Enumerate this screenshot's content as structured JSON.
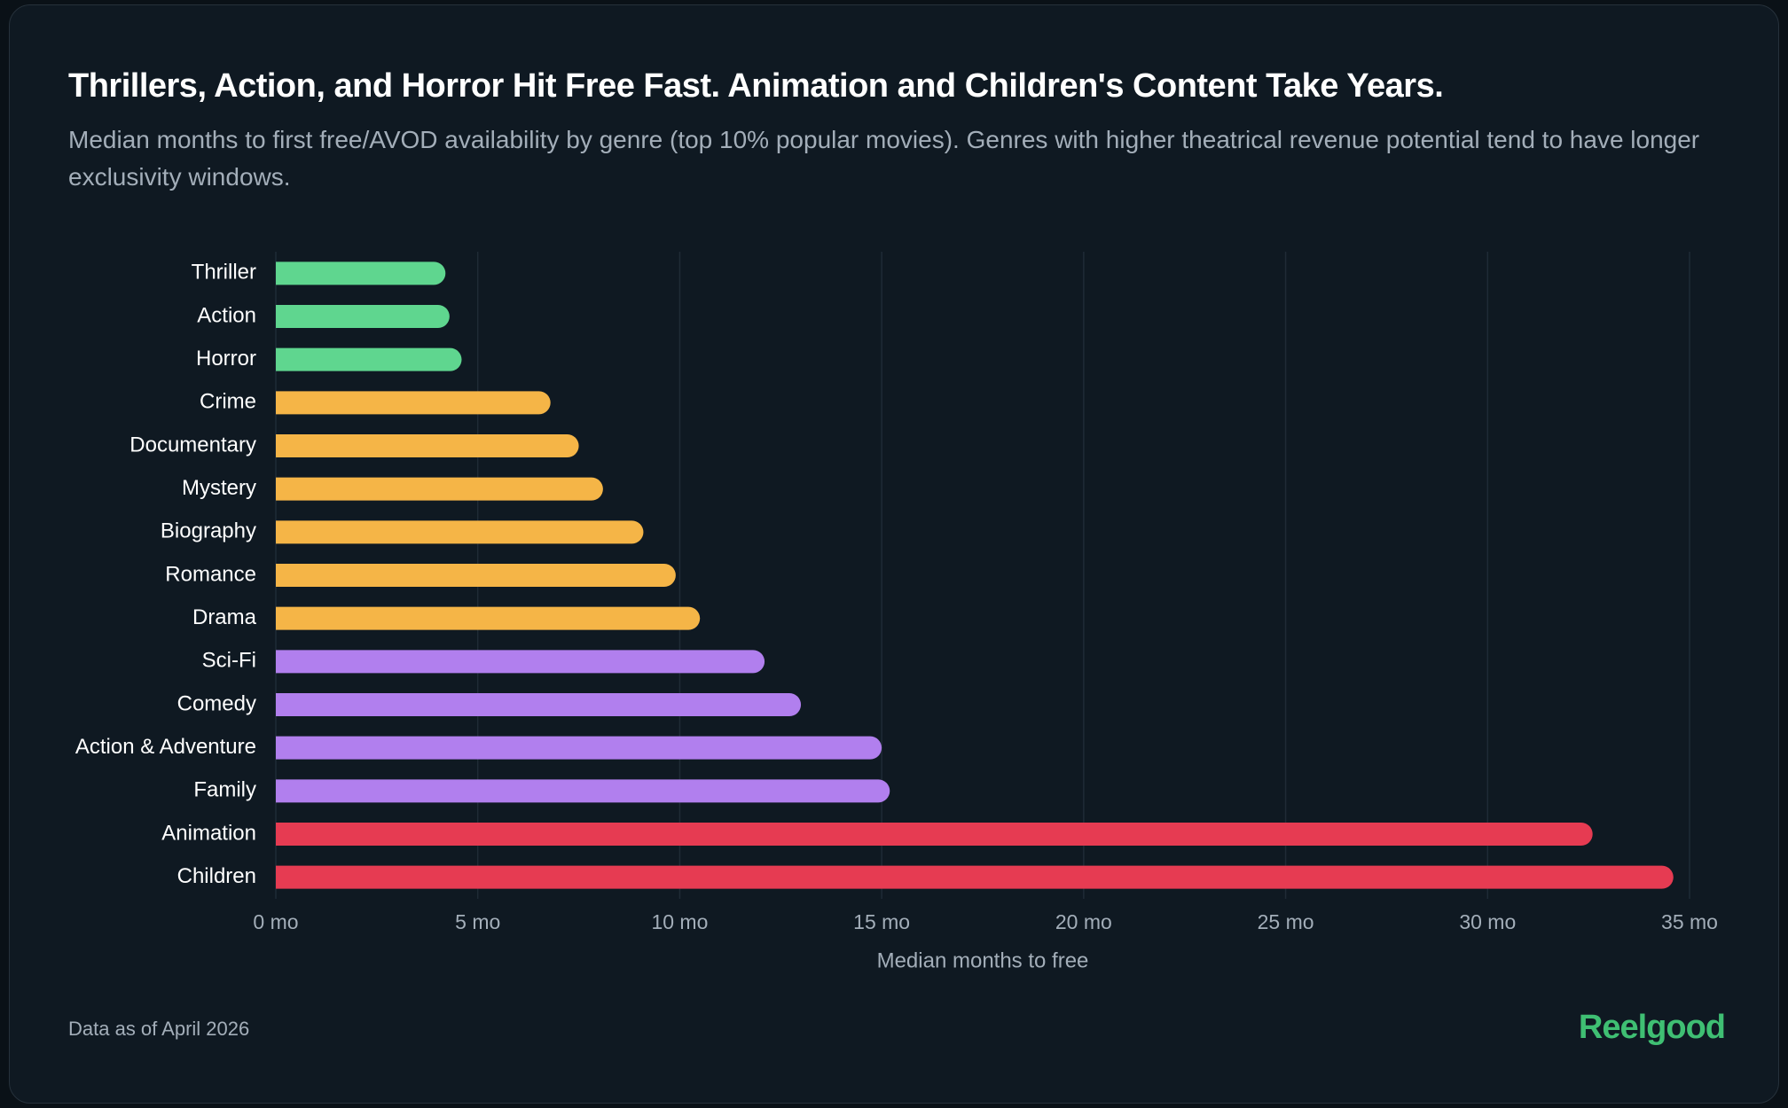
{
  "chart_data": {
    "type": "hbar",
    "title": "Thrillers, Action, and Horror Hit Free Fast. Animation and Children's Content Take Years.",
    "subtitle": "Median months to first free/AVOD availability by genre (top 10% popular movies). Genres with higher theatrical revenue potential tend to have longer exclusivity windows.",
    "categories": [
      "Thriller",
      "Action",
      "Horror",
      "Crime",
      "Documentary",
      "Mystery",
      "Biography",
      "Romance",
      "Drama",
      "Sci-Fi",
      "Comedy",
      "Action & Adventure",
      "Family",
      "Animation",
      "Children"
    ],
    "values": [
      4.2,
      4.3,
      4.6,
      6.8,
      7.5,
      8.1,
      9.1,
      9.9,
      10.5,
      12.1,
      13.0,
      15.0,
      15.2,
      32.6,
      34.6
    ],
    "colors": [
      "#5fd68f",
      "#5fd68f",
      "#5fd68f",
      "#f5b547",
      "#f5b547",
      "#f5b547",
      "#f5b547",
      "#f5b547",
      "#f5b547",
      "#b17fee",
      "#b17fee",
      "#b17fee",
      "#b17fee",
      "#e63b52",
      "#e63b52"
    ],
    "x_label": "Median months to free",
    "xlim": [
      0,
      35
    ],
    "xticks": [
      {
        "value": 0,
        "label": "0 mo"
      },
      {
        "value": 5,
        "label": "5 mo"
      },
      {
        "value": 10,
        "label": "10 mo"
      },
      {
        "value": 15,
        "label": "15 mo"
      },
      {
        "value": 20,
        "label": "20 mo"
      },
      {
        "value": 25,
        "label": "25 mo"
      },
      {
        "value": 30,
        "label": "30 mo"
      },
      {
        "value": 35,
        "label": "35 mo"
      }
    ],
    "grid": true,
    "footnote": "Data as of April 2026",
    "logo": "Reelgood"
  }
}
